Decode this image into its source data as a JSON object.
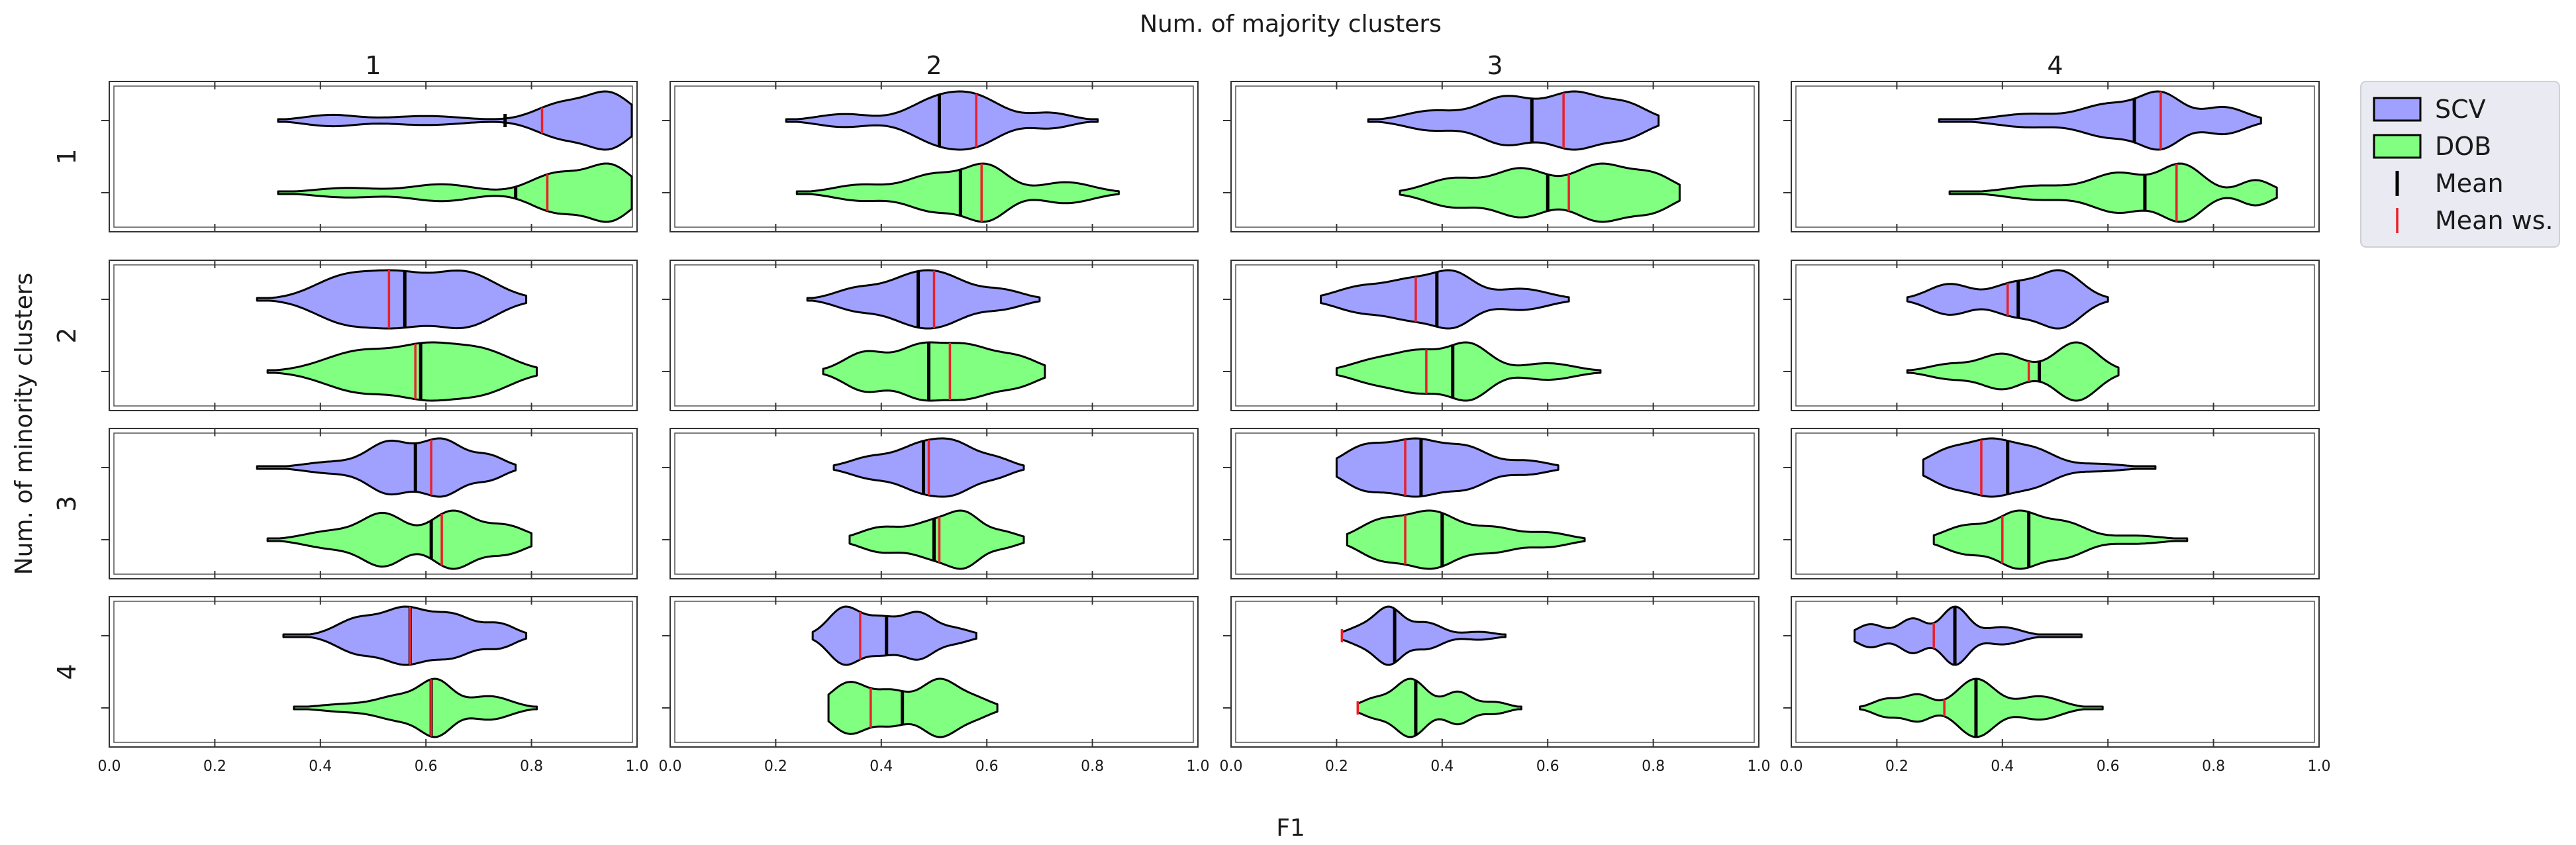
{
  "chart_data": {
    "type": "violin",
    "title": "Num. of majority clusters",
    "xlabel": "F1",
    "ylabel": "Num. of minority clusters",
    "xlim": [
      0.0,
      1.0
    ],
    "x_ticks": [
      "0.0",
      "0.2",
      "0.4",
      "0.6",
      "0.8",
      "1.0"
    ],
    "col_labels": [
      "1",
      "2",
      "3",
      "4"
    ],
    "row_labels": [
      "1",
      "2",
      "3",
      "4"
    ],
    "legend": {
      "position": "right",
      "entries": [
        {
          "label": "SCV",
          "kind": "patch",
          "color": "#a0a0ff"
        },
        {
          "label": "DOB",
          "kind": "patch",
          "color": "#80ff80"
        },
        {
          "label": "Mean",
          "kind": "line",
          "color": "#000000"
        },
        {
          "label": "Mean ws.",
          "kind": "line",
          "color": "#e8202a"
        }
      ]
    },
    "colors": {
      "scv": "#a0a0ff",
      "dob": "#80ff80",
      "mean": "#000000",
      "mean_ws": "#e8202a"
    },
    "panels": [
      {
        "row": 1,
        "col": 1,
        "scv": {
          "min": 0.32,
          "max": 0.99,
          "mean": 0.75,
          "mean_ws": 0.82,
          "modes": [
            [
              0.42,
              0.22,
              0.05
            ],
            [
              0.6,
              0.18,
              0.07
            ],
            [
              0.95,
              1.0,
              0.04
            ],
            [
              0.86,
              0.7,
              0.05
            ]
          ]
        },
        "dob": {
          "min": 0.32,
          "max": 0.99,
          "mean": 0.77,
          "mean_ws": 0.83,
          "modes": [
            [
              0.45,
              0.18,
              0.06
            ],
            [
              0.63,
              0.32,
              0.06
            ],
            [
              0.95,
              1.0,
              0.04
            ],
            [
              0.85,
              0.75,
              0.05
            ]
          ]
        }
      },
      {
        "row": 1,
        "col": 2,
        "scv": {
          "min": 0.22,
          "max": 0.81,
          "mean": 0.51,
          "mean_ws": 0.58,
          "modes": [
            [
              0.33,
              0.3,
              0.05
            ],
            [
              0.5,
              0.85,
              0.05
            ],
            [
              0.58,
              1.0,
              0.05
            ],
            [
              0.72,
              0.35,
              0.04
            ]
          ]
        },
        "dob": {
          "min": 0.24,
          "max": 0.85,
          "mean": 0.55,
          "mean_ws": 0.59,
          "modes": [
            [
              0.36,
              0.3,
              0.05
            ],
            [
              0.5,
              0.7,
              0.05
            ],
            [
              0.6,
              1.0,
              0.04
            ],
            [
              0.75,
              0.4,
              0.05
            ]
          ]
        }
      },
      {
        "row": 1,
        "col": 3,
        "scv": {
          "min": 0.26,
          "max": 0.81,
          "mean": 0.57,
          "mean_ws": 0.63,
          "modes": [
            [
              0.38,
              0.35,
              0.05
            ],
            [
              0.52,
              0.85,
              0.05
            ],
            [
              0.65,
              1.0,
              0.05
            ],
            [
              0.75,
              0.55,
              0.04
            ]
          ]
        },
        "dob": {
          "min": 0.32,
          "max": 0.85,
          "mean": 0.6,
          "mean_ws": 0.64,
          "modes": [
            [
              0.42,
              0.5,
              0.05
            ],
            [
              0.55,
              0.85,
              0.05
            ],
            [
              0.7,
              1.0,
              0.05
            ],
            [
              0.8,
              0.6,
              0.04
            ]
          ]
        }
      },
      {
        "row": 1,
        "col": 4,
        "scv": {
          "min": 0.28,
          "max": 0.89,
          "mean": 0.65,
          "mean_ws": 0.7,
          "modes": [
            [
              0.45,
              0.25,
              0.06
            ],
            [
              0.6,
              0.6,
              0.05
            ],
            [
              0.7,
              1.0,
              0.04
            ],
            [
              0.82,
              0.5,
              0.04
            ]
          ]
        },
        "dob": {
          "min": 0.3,
          "max": 0.92,
          "mean": 0.67,
          "mean_ws": 0.73,
          "modes": [
            [
              0.47,
              0.25,
              0.06
            ],
            [
              0.62,
              0.7,
              0.05
            ],
            [
              0.74,
              1.0,
              0.04
            ],
            [
              0.88,
              0.45,
              0.03
            ]
          ]
        }
      },
      {
        "row": 2,
        "col": 1,
        "scv": {
          "min": 0.28,
          "max": 0.79,
          "mean": 0.56,
          "mean_ws": 0.53,
          "modes": [
            [
              0.45,
              0.85,
              0.06
            ],
            [
              0.55,
              0.7,
              0.05
            ],
            [
              0.67,
              1.0,
              0.06
            ]
          ]
        },
        "dob": {
          "min": 0.3,
          "max": 0.81,
          "mean": 0.59,
          "mean_ws": 0.58,
          "modes": [
            [
              0.48,
              0.95,
              0.07
            ],
            [
              0.6,
              0.85,
              0.05
            ],
            [
              0.7,
              1.0,
              0.06
            ]
          ]
        }
      },
      {
        "row": 2,
        "col": 2,
        "scv": {
          "min": 0.26,
          "max": 0.7,
          "mean": 0.47,
          "mean_ws": 0.5,
          "modes": [
            [
              0.35,
              0.5,
              0.04
            ],
            [
              0.45,
              0.9,
              0.05
            ],
            [
              0.52,
              1.0,
              0.05
            ],
            [
              0.63,
              0.45,
              0.04
            ]
          ]
        },
        "dob": {
          "min": 0.29,
          "max": 0.71,
          "mean": 0.49,
          "mean_ws": 0.53,
          "modes": [
            [
              0.37,
              0.75,
              0.04
            ],
            [
              0.47,
              0.85,
              0.04
            ],
            [
              0.56,
              1.0,
              0.05
            ],
            [
              0.66,
              0.5,
              0.04
            ]
          ]
        }
      },
      {
        "row": 2,
        "col": 3,
        "scv": {
          "min": 0.17,
          "max": 0.64,
          "mean": 0.39,
          "mean_ws": 0.35,
          "modes": [
            [
              0.25,
              0.5,
              0.05
            ],
            [
              0.34,
              0.6,
              0.04
            ],
            [
              0.42,
              1.0,
              0.04
            ],
            [
              0.55,
              0.4,
              0.05
            ]
          ]
        },
        "dob": {
          "min": 0.2,
          "max": 0.7,
          "mean": 0.42,
          "mean_ws": 0.37,
          "modes": [
            [
              0.28,
              0.45,
              0.05
            ],
            [
              0.36,
              0.6,
              0.04
            ],
            [
              0.45,
              1.0,
              0.04
            ],
            [
              0.6,
              0.3,
              0.05
            ]
          ]
        }
      },
      {
        "row": 2,
        "col": 4,
        "scv": {
          "min": 0.22,
          "max": 0.6,
          "mean": 0.43,
          "mean_ws": 0.41,
          "modes": [
            [
              0.3,
              0.55,
              0.04
            ],
            [
              0.42,
              0.55,
              0.04
            ],
            [
              0.51,
              1.0,
              0.04
            ]
          ]
        },
        "dob": {
          "min": 0.22,
          "max": 0.62,
          "mean": 0.47,
          "mean_ws": 0.45,
          "modes": [
            [
              0.3,
              0.25,
              0.04
            ],
            [
              0.4,
              0.6,
              0.04
            ],
            [
              0.54,
              1.0,
              0.04
            ]
          ]
        }
      },
      {
        "row": 3,
        "col": 1,
        "scv": {
          "min": 0.28,
          "max": 0.77,
          "mean": 0.58,
          "mean_ws": 0.61,
          "modes": [
            [
              0.42,
              0.2,
              0.05
            ],
            [
              0.53,
              0.9,
              0.04
            ],
            [
              0.63,
              1.0,
              0.04
            ],
            [
              0.72,
              0.4,
              0.03
            ]
          ]
        },
        "dob": {
          "min": 0.3,
          "max": 0.8,
          "mean": 0.61,
          "mean_ws": 0.63,
          "modes": [
            [
              0.42,
              0.3,
              0.05
            ],
            [
              0.52,
              0.9,
              0.04
            ],
            [
              0.65,
              1.0,
              0.04
            ],
            [
              0.75,
              0.5,
              0.04
            ]
          ]
        }
      },
      {
        "row": 3,
        "col": 2,
        "scv": {
          "min": 0.31,
          "max": 0.67,
          "mean": 0.48,
          "mean_ws": 0.49,
          "modes": [
            [
              0.38,
              0.45,
              0.04
            ],
            [
              0.47,
              0.85,
              0.04
            ],
            [
              0.54,
              1.0,
              0.04
            ],
            [
              0.62,
              0.35,
              0.03
            ]
          ]
        },
        "dob": {
          "min": 0.34,
          "max": 0.67,
          "mean": 0.5,
          "mean_ws": 0.51,
          "modes": [
            [
              0.4,
              0.55,
              0.04
            ],
            [
              0.5,
              0.8,
              0.04
            ],
            [
              0.56,
              1.0,
              0.03
            ],
            [
              0.63,
              0.35,
              0.03
            ]
          ]
        }
      },
      {
        "row": 3,
        "col": 3,
        "scv": {
          "min": 0.2,
          "max": 0.62,
          "mean": 0.36,
          "mean_ws": 0.33,
          "modes": [
            [
              0.25,
              0.7,
              0.04
            ],
            [
              0.35,
              1.0,
              0.05
            ],
            [
              0.45,
              0.65,
              0.04
            ],
            [
              0.56,
              0.25,
              0.04
            ]
          ]
        },
        "dob": {
          "min": 0.22,
          "max": 0.67,
          "mean": 0.4,
          "mean_ws": 0.33,
          "modes": [
            [
              0.28,
              0.6,
              0.04
            ],
            [
              0.38,
              1.0,
              0.05
            ],
            [
              0.5,
              0.4,
              0.04
            ],
            [
              0.6,
              0.25,
              0.04
            ]
          ]
        }
      },
      {
        "row": 3,
        "col": 4,
        "scv": {
          "min": 0.25,
          "max": 0.69,
          "mean": 0.41,
          "mean_ws": 0.36,
          "modes": [
            [
              0.3,
              0.7,
              0.04
            ],
            [
              0.38,
              1.0,
              0.04
            ],
            [
              0.46,
              0.7,
              0.04
            ],
            [
              0.58,
              0.15,
              0.05
            ]
          ]
        },
        "dob": {
          "min": 0.27,
          "max": 0.75,
          "mean": 0.45,
          "mean_ws": 0.4,
          "modes": [
            [
              0.33,
              0.5,
              0.04
            ],
            [
              0.43,
              1.0,
              0.04
            ],
            [
              0.52,
              0.6,
              0.04
            ],
            [
              0.65,
              0.15,
              0.05
            ]
          ]
        }
      },
      {
        "row": 4,
        "col": 1,
        "scv": {
          "min": 0.33,
          "max": 0.79,
          "mean": 0.57,
          "mean_ws": 0.57,
          "modes": [
            [
              0.47,
              0.45,
              0.04
            ],
            [
              0.56,
              0.7,
              0.04
            ],
            [
              0.65,
              0.55,
              0.04
            ],
            [
              0.74,
              0.3,
              0.03
            ]
          ]
        },
        "dob": {
          "min": 0.35,
          "max": 0.81,
          "mean": 0.61,
          "mean_ws": 0.61,
          "modes": [
            [
              0.45,
              0.15,
              0.05
            ],
            [
              0.55,
              0.45,
              0.04
            ],
            [
              0.62,
              1.0,
              0.03
            ],
            [
              0.72,
              0.45,
              0.04
            ]
          ]
        }
      },
      {
        "row": 4,
        "col": 2,
        "scv": {
          "min": 0.27,
          "max": 0.58,
          "mean": 0.41,
          "mean_ws": 0.36,
          "modes": [
            [
              0.33,
              1.0,
              0.03
            ],
            [
              0.4,
              0.6,
              0.03
            ],
            [
              0.47,
              0.8,
              0.03
            ],
            [
              0.54,
              0.25,
              0.03
            ]
          ]
        },
        "dob": {
          "min": 0.3,
          "max": 0.62,
          "mean": 0.44,
          "mean_ws": 0.38,
          "modes": [
            [
              0.34,
              0.9,
              0.035
            ],
            [
              0.42,
              0.55,
              0.03
            ],
            [
              0.51,
              1.0,
              0.035
            ],
            [
              0.58,
              0.3,
              0.03
            ]
          ]
        }
      },
      {
        "row": 4,
        "col": 3,
        "scv": {
          "min": 0.21,
          "max": 0.52,
          "mean": 0.31,
          "mean_ws": 0.21,
          "modes": [
            [
              0.25,
              0.35,
              0.03
            ],
            [
              0.3,
              1.0,
              0.025
            ],
            [
              0.37,
              0.5,
              0.03
            ],
            [
              0.47,
              0.15,
              0.03
            ]
          ]
        },
        "dob": {
          "min": 0.24,
          "max": 0.55,
          "mean": 0.35,
          "mean_ws": 0.24,
          "modes": [
            [
              0.27,
              0.3,
              0.025
            ],
            [
              0.34,
              1.0,
              0.03
            ],
            [
              0.43,
              0.55,
              0.025
            ],
            [
              0.5,
              0.2,
              0.025
            ]
          ]
        }
      },
      {
        "row": 4,
        "col": 4,
        "scv": {
          "min": 0.12,
          "max": 0.55,
          "mean": 0.31,
          "mean_ws": 0.27,
          "modes": [
            [
              0.15,
              0.4,
              0.025
            ],
            [
              0.23,
              0.6,
              0.025
            ],
            [
              0.31,
              1.0,
              0.025
            ],
            [
              0.4,
              0.3,
              0.035
            ]
          ]
        },
        "dob": {
          "min": 0.13,
          "max": 0.59,
          "mean": 0.35,
          "mean_ws": 0.29,
          "modes": [
            [
              0.18,
              0.3,
              0.025
            ],
            [
              0.24,
              0.45,
              0.025
            ],
            [
              0.35,
              1.0,
              0.035
            ],
            [
              0.47,
              0.4,
              0.04
            ]
          ]
        }
      }
    ]
  }
}
